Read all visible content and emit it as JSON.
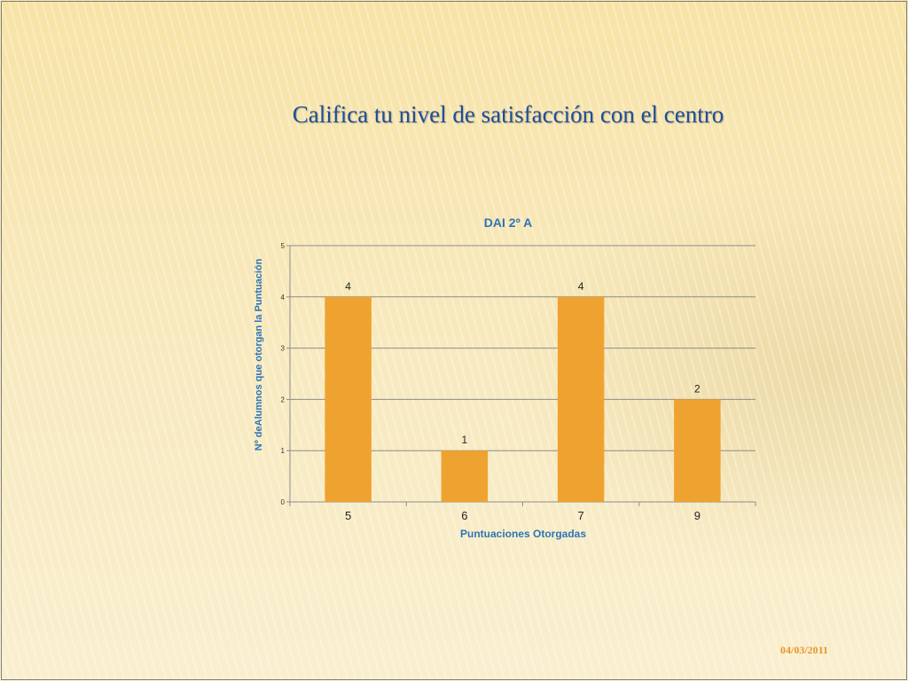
{
  "slide": {
    "title": "Califica tu nivel de satisfacción con el centro",
    "date": "04/03/2011"
  },
  "colors": {
    "bar": "#eea330",
    "title_text": "#1f4e9a",
    "chart_text": "#2e75b6",
    "date_text": "#e8962a",
    "grid": "#8c8c8c"
  },
  "chart_data": {
    "type": "bar",
    "title": "DAI 2º A",
    "xlabel": "Puntuaciones Otorgadas",
    "ylabel": "Nº deAlumnos que otorgan la Puntuación",
    "categories": [
      "5",
      "6",
      "7",
      "9"
    ],
    "values": [
      4,
      1,
      4,
      2
    ],
    "ylim": [
      0,
      5
    ],
    "yticks": [
      0,
      1,
      2,
      3,
      4,
      5
    ],
    "grid": true,
    "data_labels": true
  }
}
